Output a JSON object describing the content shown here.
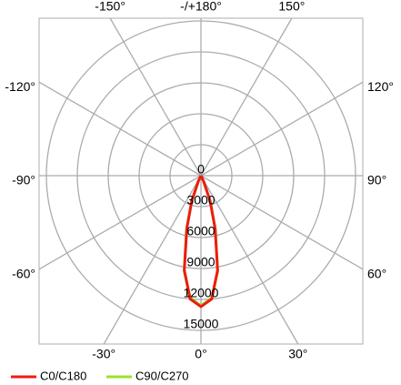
{
  "chart_data": {
    "type": "polar",
    "angles": [
      -35,
      -30,
      -25,
      -20,
      -15,
      -10,
      -5,
      0,
      5,
      10,
      15,
      20,
      25,
      30,
      35
    ],
    "series": [
      {
        "name": "C0/C180",
        "color": "#ee1c0f",
        "values": [
          0,
          0,
          600,
          2600,
          5300,
          9300,
          12000,
          12700,
          12000,
          9300,
          5300,
          2600,
          600,
          0,
          0
        ]
      },
      {
        "name": "C90/C270",
        "color": "#9ee02a",
        "values": [
          0,
          0,
          600,
          2600,
          5400,
          9400,
          11900,
          12600,
          11900,
          9400,
          5400,
          2600,
          600,
          0,
          0
        ]
      }
    ],
    "rlim": [
      0,
      15000
    ],
    "rticks": [
      0,
      3000,
      6000,
      9000,
      12000,
      15000
    ],
    "angle_ticks": [
      {
        "value": -150,
        "label": "-150°"
      },
      {
        "value": 180,
        "label": "-/+180°"
      },
      {
        "value": 150,
        "label": "150°"
      },
      {
        "value": -120,
        "label": "-120°"
      },
      {
        "value": 120,
        "label": "120°"
      },
      {
        "value": -90,
        "label": "-90°"
      },
      {
        "value": 90,
        "label": "90°"
      },
      {
        "value": -60,
        "label": "-60°"
      },
      {
        "value": 60,
        "label": "60°"
      },
      {
        "value": -30,
        "label": "-30°"
      },
      {
        "value": 0,
        "label": "0°"
      },
      {
        "value": 30,
        "label": "30°"
      }
    ],
    "grid": true
  }
}
